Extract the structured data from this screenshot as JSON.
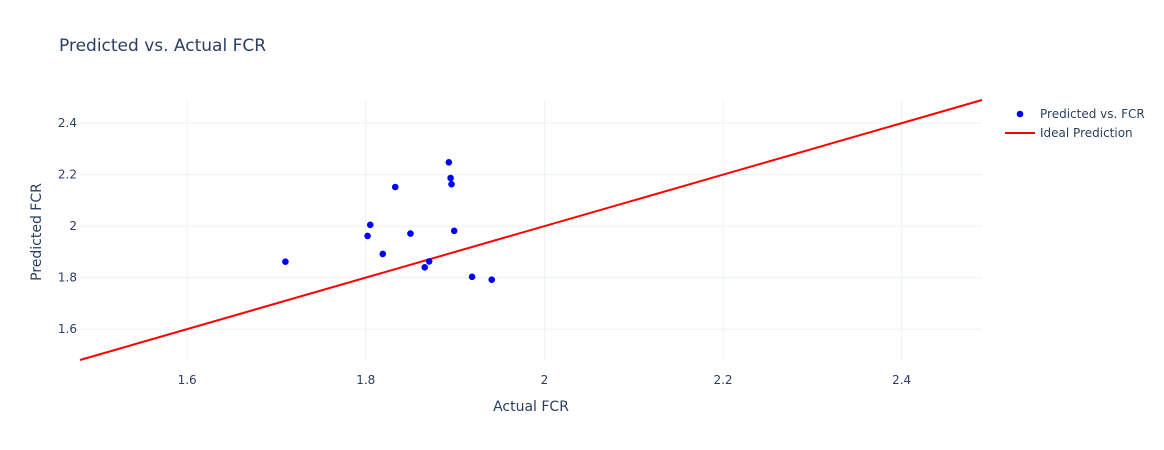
{
  "chart_data": {
    "type": "scatter",
    "title": "Predicted vs. Actual FCR",
    "xlabel": "Actual FCR",
    "ylabel": "Predicted FCR",
    "xlim": [
      1.48,
      2.49
    ],
    "ylim": [
      1.48,
      2.49
    ],
    "x_ticks": [
      1.6,
      1.8,
      2.0,
      2.2,
      2.4
    ],
    "x_tick_labels": [
      "1.6",
      "1.8",
      "2",
      "2.2",
      "2.4"
    ],
    "y_ticks": [
      1.6,
      1.8,
      2.0,
      2.2,
      2.4
    ],
    "y_tick_labels": [
      "1.6",
      "1.8",
      "2",
      "2.2",
      "2.4"
    ],
    "grid": true,
    "legend_position": "top-right",
    "series": [
      {
        "name": "Predicted vs. FCR",
        "mode": "markers",
        "color": "#0000ff",
        "points": [
          {
            "x": 1.71,
            "y": 1.862
          },
          {
            "x": 1.802,
            "y": 1.962
          },
          {
            "x": 1.805,
            "y": 2.005
          },
          {
            "x": 1.819,
            "y": 1.892
          },
          {
            "x": 1.833,
            "y": 2.152
          },
          {
            "x": 1.85,
            "y": 1.971
          },
          {
            "x": 1.866,
            "y": 1.84
          },
          {
            "x": 1.871,
            "y": 1.863
          },
          {
            "x": 1.893,
            "y": 2.248
          },
          {
            "x": 1.895,
            "y": 2.187
          },
          {
            "x": 1.896,
            "y": 2.163
          },
          {
            "x": 1.899,
            "y": 1.982
          },
          {
            "x": 1.919,
            "y": 1.803
          },
          {
            "x": 1.941,
            "y": 1.792
          }
        ]
      },
      {
        "name": "Ideal Prediction",
        "mode": "lines",
        "color": "#ff0000",
        "points": [
          {
            "x": 1.48,
            "y": 1.48
          },
          {
            "x": 2.49,
            "y": 2.49
          }
        ]
      }
    ]
  }
}
